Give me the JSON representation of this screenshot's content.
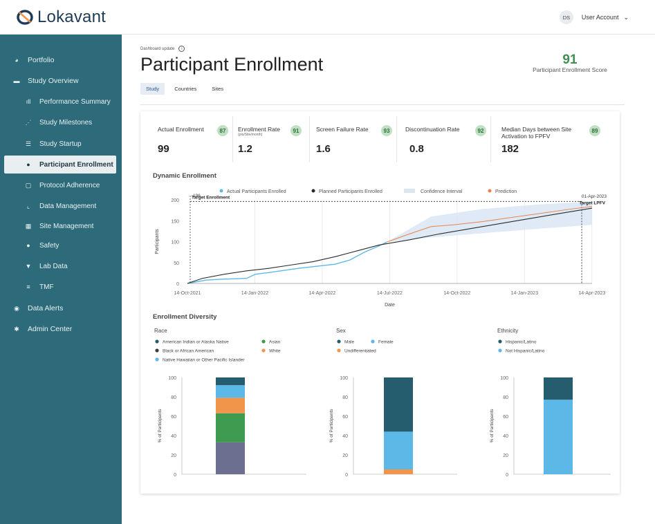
{
  "brand": {
    "name": "Lokavant"
  },
  "user": {
    "initials": "DS",
    "label": "User Account"
  },
  "sidebar": [
    {
      "label": "Portfolio",
      "icon": "pie-chart-icon",
      "sub": false,
      "active": false
    },
    {
      "label": "Study Overview",
      "icon": "list-icon",
      "sub": false,
      "active": false
    },
    {
      "label": "Performance Summary",
      "icon": "bar-chart-icon",
      "sub": true,
      "active": false
    },
    {
      "label": "Study Milestones",
      "icon": "milestones-icon",
      "sub": true,
      "active": false
    },
    {
      "label": "Study Startup",
      "icon": "checklist-icon",
      "sub": true,
      "active": false
    },
    {
      "label": "Participant Enrollment",
      "icon": "person-icon",
      "sub": true,
      "active": true
    },
    {
      "label": "Protocol Adherence",
      "icon": "clipboard-icon",
      "sub": true,
      "active": false
    },
    {
      "label": "Data Management",
      "icon": "line-chart-icon",
      "sub": true,
      "active": false
    },
    {
      "label": "Site Management",
      "icon": "building-icon",
      "sub": true,
      "active": false
    },
    {
      "label": "Safety",
      "icon": "alert-icon",
      "sub": true,
      "active": false
    },
    {
      "label": "Lab Data",
      "icon": "flask-icon",
      "sub": true,
      "active": false
    },
    {
      "label": "TMF",
      "icon": "database-icon",
      "sub": true,
      "active": false
    },
    {
      "label": "Data Alerts",
      "icon": "eye-icon",
      "sub": false,
      "active": false
    },
    {
      "label": "Admin Center",
      "icon": "gear-icon",
      "sub": false,
      "active": false
    }
  ],
  "page": {
    "update_label": "Dashboard update",
    "title": "Participant Enrollment",
    "score_value": "91",
    "score_label": "Participant Enrollment Score",
    "tabs": [
      "Study",
      "Countries",
      "Sites"
    ],
    "active_tab": "Study"
  },
  "metrics": [
    {
      "label": "Actual Enrollment",
      "sub": "",
      "value": "99",
      "badge": "87"
    },
    {
      "label": "Enrollment Rate",
      "sub": "(pts/Site/month)",
      "value": "1.2",
      "badge": "91"
    },
    {
      "label": "Screen Failure Rate",
      "sub": "",
      "value": "1.6",
      "badge": "93"
    },
    {
      "label": "Discontinuation Rate",
      "sub": "",
      "value": "0.8",
      "badge": "92"
    },
    {
      "label": "Median Days between Site Activation to FPFV",
      "sub": "",
      "value": "182",
      "badge": "89"
    }
  ],
  "colors": {
    "sidebar": "#2d6b7a",
    "actual": "#5cb8e6",
    "planned": "#2b2b2b",
    "ci": "#dbe6f5",
    "prediction": "#e8834a",
    "dark_teal": "#265d6e",
    "light_blue": "#5cb8e6",
    "orange": "#f0954a",
    "green": "#3f9b4f",
    "slate": "#6d6f90",
    "badge": "#bfe0c3"
  },
  "chart_data": [
    {
      "type": "line",
      "title": "Dynamic Enrollment",
      "xlabel": "Date",
      "ylabel": "Participants",
      "ylim": [
        0,
        200
      ],
      "yticks": [
        0,
        50,
        100,
        150,
        200
      ],
      "xticks": [
        "14-Oct-2021",
        "14-Jan-2022",
        "14-Apr-2022",
        "14-Jul-2022",
        "14-Oct-2022",
        "14-Jan-2023",
        "14-Apr-2023"
      ],
      "x_range_days": [
        0,
        548
      ],
      "annotations": {
        "target_enrollment_label": "Target Enrollment",
        "target_enrollment_value_label": "196",
        "target_enrollment": 196,
        "target_lpfv_label": "Target LPFV",
        "target_lpfv_date_label": "01-Apr-2023",
        "target_lpfv_day": 534
      },
      "legend": [
        "Actual Participants Enrolled",
        "Planned Participants Enrolled",
        "Confidence Interval",
        "Prediction"
      ],
      "series": [
        {
          "name": "Actual Participants Enrolled",
          "x": [
            0,
            25,
            45,
            80,
            92,
            110,
            150,
            200,
            220,
            240,
            260,
            270
          ],
          "y": [
            0,
            8,
            10,
            12,
            22,
            26,
            36,
            46,
            56,
            75,
            90,
            99
          ]
        },
        {
          "name": "Planned Participants Enrolled",
          "x": [
            0,
            20,
            50,
            80,
            110,
            140,
            170,
            200,
            230,
            260,
            300,
            340,
            380,
            420,
            460,
            500,
            534,
            548
          ],
          "y": [
            0,
            12,
            22,
            30,
            36,
            44,
            52,
            64,
            78,
            92,
            104,
            118,
            130,
            142,
            154,
            166,
            176,
            180
          ]
        },
        {
          "name": "Prediction",
          "x": [
            270,
            300,
            330,
            360,
            400,
            440,
            480,
            520,
            548
          ],
          "y": [
            99,
            118,
            136,
            140,
            148,
            158,
            168,
            178,
            184
          ]
        },
        {
          "name": "Confidence Interval",
          "x": [
            270,
            330,
            400,
            470,
            548
          ],
          "lower": [
            99,
            110,
            120,
            130,
            140
          ],
          "upper": [
            99,
            160,
            178,
            188,
            196
          ]
        }
      ]
    },
    {
      "type": "bar",
      "title": "Race",
      "ylabel": "% of Participants",
      "ylim": [
        0,
        100
      ],
      "yticks": [
        0,
        20,
        40,
        60,
        80,
        100
      ],
      "series": [
        {
          "name": "Black or African American",
          "value": 33
        },
        {
          "name": "Asian",
          "value": 30
        },
        {
          "name": "White",
          "value": 16
        },
        {
          "name": "Native Hawaiian or Other Pacific Islander",
          "value": 13
        },
        {
          "name": "American Indian or Alaska Native",
          "value": 8
        }
      ],
      "legend": [
        "American Indian or Alaska Native",
        "Asian",
        "Black or African American",
        "White",
        "Native Hawaiian or Other Pacific Islander"
      ]
    },
    {
      "type": "bar",
      "title": "Sex",
      "ylabel": "% of Participants",
      "ylim": [
        0,
        100
      ],
      "yticks": [
        0,
        20,
        40,
        60,
        80,
        100
      ],
      "series": [
        {
          "name": "Undifferentiated",
          "value": 5
        },
        {
          "name": "Female",
          "value": 39
        },
        {
          "name": "Male",
          "value": 56
        }
      ],
      "legend": [
        "Male",
        "Female",
        "Undifferentiated"
      ]
    },
    {
      "type": "bar",
      "title": "Ethnicity",
      "ylabel": "% of Participants",
      "ylim": [
        0,
        100
      ],
      "yticks": [
        0,
        20,
        40,
        60,
        80,
        100
      ],
      "series": [
        {
          "name": "Not Hispanic/Latino",
          "value": 77
        },
        {
          "name": "Hispanic/Latino",
          "value": 23
        }
      ],
      "legend": [
        "Hispanic/Latino",
        "Not Hispanic/Latino"
      ]
    }
  ],
  "diversity_title": "Enrollment Diversity"
}
